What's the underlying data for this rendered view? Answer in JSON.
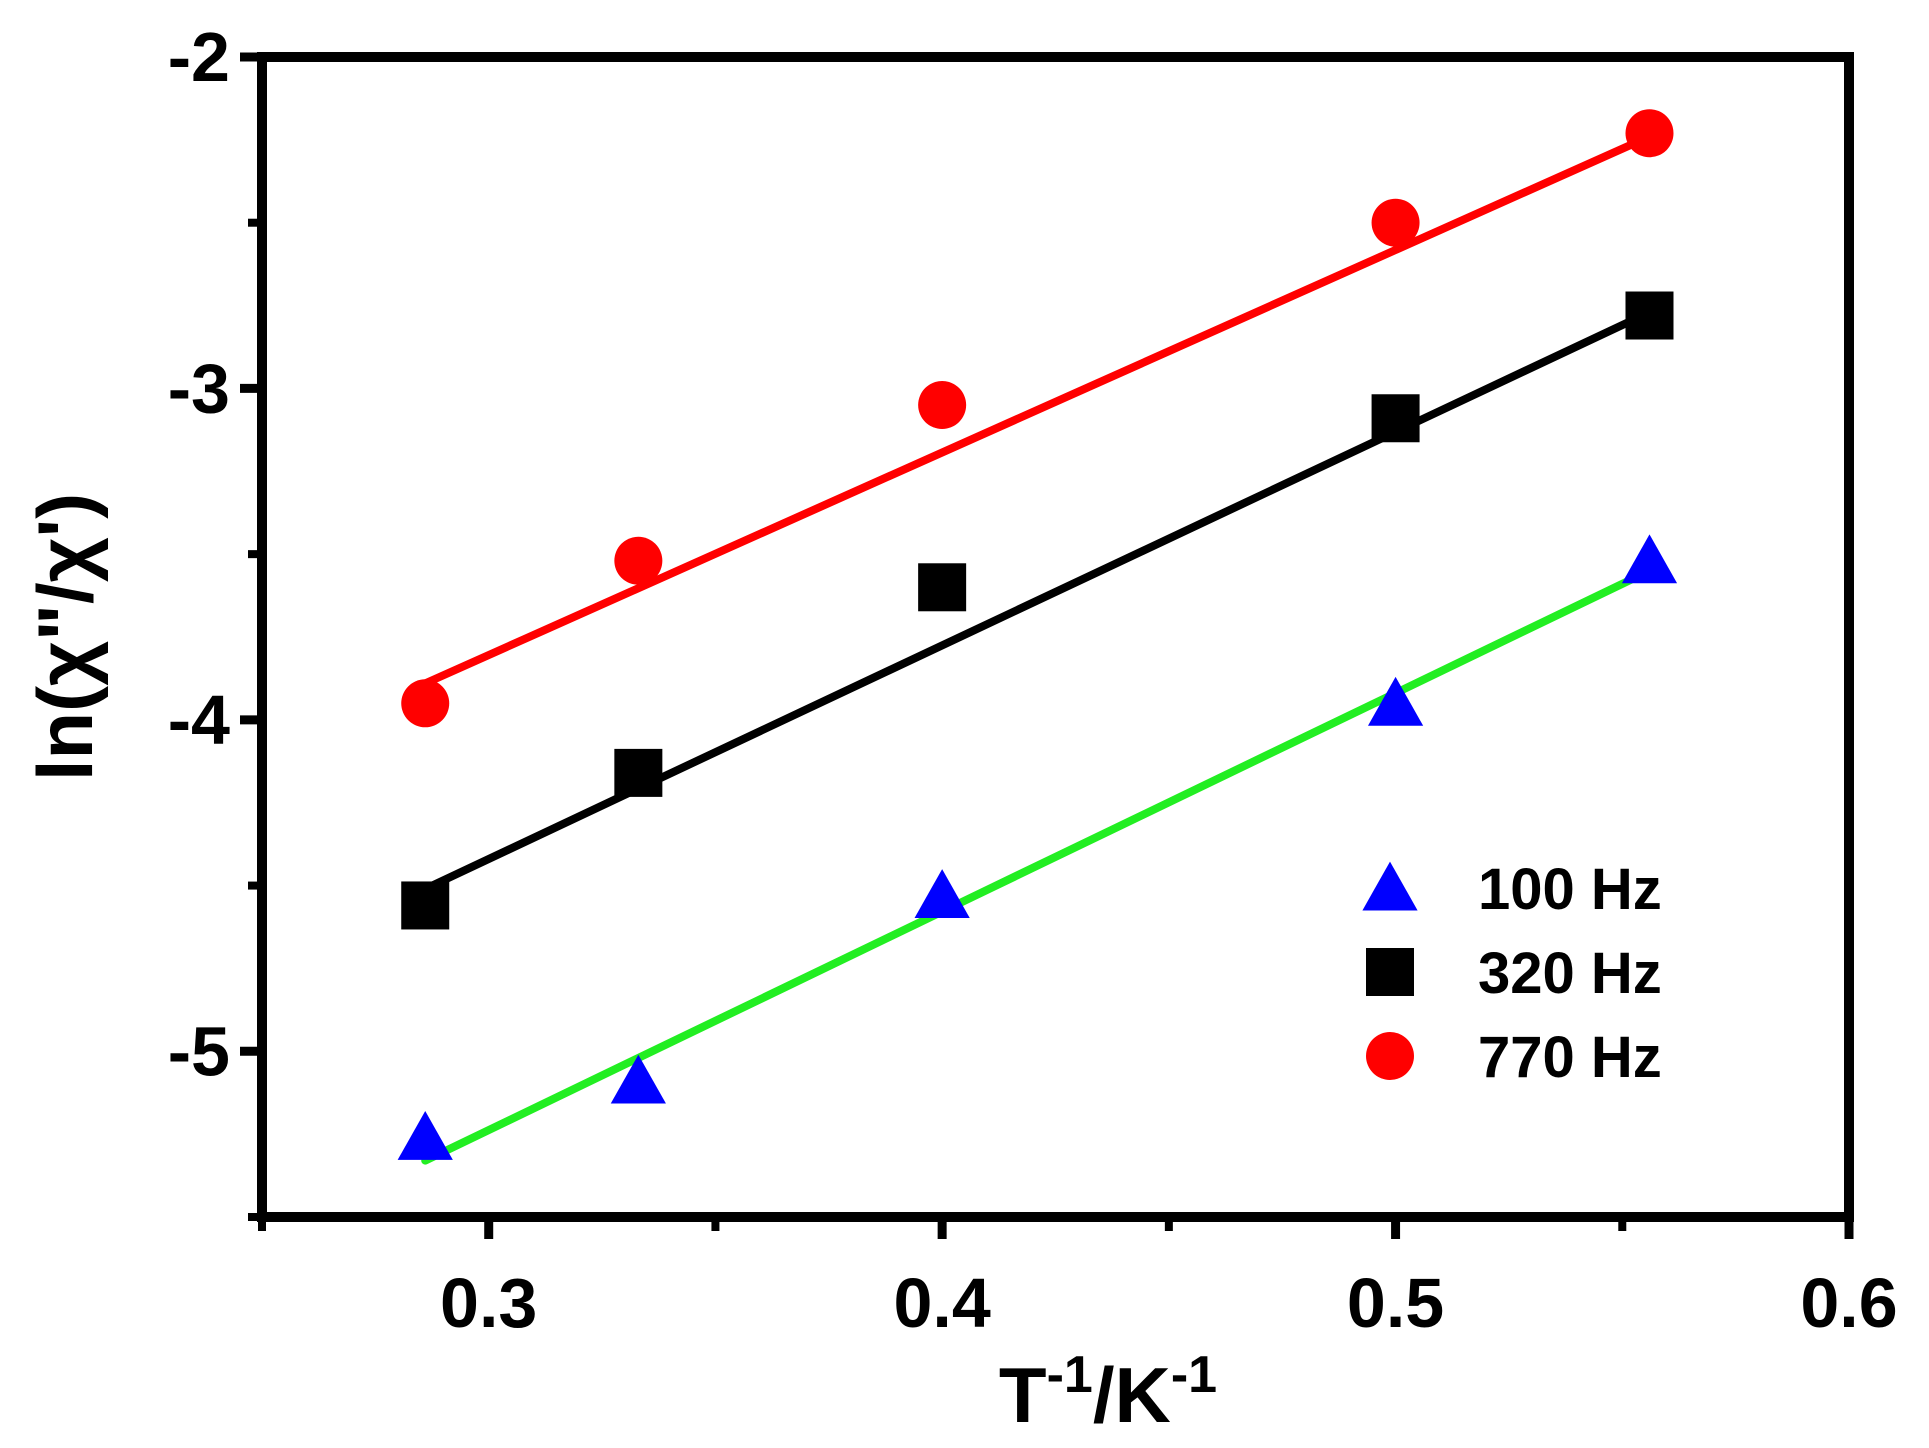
{
  "chart_data": {
    "type": "scatter",
    "title": "",
    "xlabel": {
      "base": "T",
      "sup1": "-1",
      "mid": "/K",
      "sup2": "-1"
    },
    "ylabel": "ln(χ\"/χ')",
    "xlim": [
      0.25,
      0.6
    ],
    "ylim": [
      -5.5,
      -2
    ],
    "grid": false,
    "legend_position": "bottom-right",
    "x_ticks": [
      {
        "value": 0.3,
        "label": "0.3"
      },
      {
        "value": 0.4,
        "label": "0.4"
      },
      {
        "value": 0.5,
        "label": "0.5"
      },
      {
        "value": 0.6,
        "label": "0.6"
      }
    ],
    "x_minor_ticks": [
      0.25,
      0.35,
      0.45,
      0.55
    ],
    "y_ticks": [
      {
        "value": -2,
        "label": "-2"
      },
      {
        "value": -3,
        "label": "-3"
      },
      {
        "value": -4,
        "label": "-4"
      },
      {
        "value": -5,
        "label": "-5"
      }
    ],
    "y_minor_ticks": [
      -2.5,
      -3.5,
      -4.5,
      -5.5
    ],
    "series": [
      {
        "name": "100 Hz",
        "marker": "triangle",
        "color": "#0000ff",
        "fit_color": "#22ee22",
        "x": [
          0.286,
          0.333,
          0.4,
          0.5,
          0.556
        ],
        "y": [
          -5.26,
          -5.09,
          -4.53,
          -3.95,
          -3.52
        ],
        "fit": {
          "x": [
            0.286,
            0.556
          ],
          "y": [
            -5.33,
            -3.55
          ]
        }
      },
      {
        "name": "320 Hz",
        "marker": "square",
        "color": "#000000",
        "fit_color": "#000000",
        "x": [
          0.286,
          0.333,
          0.4,
          0.5,
          0.556
        ],
        "y": [
          -4.56,
          -4.16,
          -3.6,
          -3.09,
          -2.78
        ],
        "fit": {
          "x": [
            0.286,
            0.556
          ],
          "y": [
            -4.51,
            -2.77
          ]
        }
      },
      {
        "name": "770 Hz",
        "marker": "circle",
        "color": "#ff0000",
        "fit_color": "#ff0000",
        "x": [
          0.286,
          0.333,
          0.4,
          0.5,
          0.556
        ],
        "y": [
          -3.95,
          -3.52,
          -3.05,
          -2.5,
          -2.23
        ],
        "fit": {
          "x": [
            0.286,
            0.556
          ],
          "y": [
            -3.89,
            -2.24
          ]
        }
      }
    ]
  }
}
